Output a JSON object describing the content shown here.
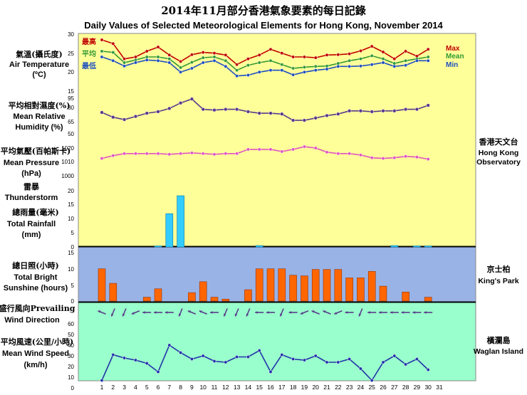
{
  "title_cn": "2014年11月部分香港氣象要素的每日記錄",
  "title_en": "Daily Values of Selected Meteorological Elements for Hong Kong, November 2014",
  "colors": {
    "hko_bg": "#ffff99",
    "kp_bg": "#99b3e6",
    "wi_bg": "#99ffcc",
    "max": "#c00000",
    "mean": "#339933",
    "min": "#1f4fbf",
    "rh": "#5a3a8a",
    "pressure": "#e055c0",
    "rain": "#33ccff",
    "sunshine": "#ff6600",
    "wind_dir": "#5a3a8a",
    "wind_speed": "#2233aa"
  },
  "panels": {
    "temperature": {
      "label_cn": "氣溫(攝氏度)",
      "label_en1": "Air Temperature",
      "label_en2": "(ºC)",
      "ticks": [
        "30",
        "25",
        "20",
        "15"
      ]
    },
    "humidity": {
      "label_cn": "平均相對濕度(%)",
      "label_en1": "Mean Relative",
      "label_en2": "Humidity  (%)",
      "ticks": [
        "95",
        "80",
        "65",
        "50"
      ]
    },
    "pressure": {
      "label_cn": "平均氣壓(百帕斯卡)",
      "label_en1": "Mean Pressure",
      "label_en2": "(hPa)",
      "ticks": [
        "1020",
        "1010",
        "1000"
      ]
    },
    "rainfall": {
      "label_cn1": "雷暴",
      "label_en1": "Thunderstorm",
      "label_cn2": "總雨量(毫米)",
      "label_en2": "Total Rainfall",
      "label_en3": "(mm)",
      "ticks": [
        "20",
        "15",
        "10",
        "5",
        "0"
      ]
    },
    "sunshine": {
      "label_cn": "總日照(小時)",
      "label_en1": "Total Bright",
      "label_en2": "Sunshine  (hours)",
      "ticks": [
        "15",
        "10",
        "5",
        "0"
      ]
    },
    "wind_dir": {
      "label_cn": "盛行風向Prevailing",
      "label_en1": "Wind Direction"
    },
    "wind_speed": {
      "label_cn": "平均風速(公里/小時)",
      "label_en1": "Mean Wind Speed",
      "label_en2": "(km/h)",
      "ticks": [
        "60",
        "50",
        "40",
        "30",
        "20",
        "10",
        "0"
      ]
    }
  },
  "legend": {
    "max_cn": "最高",
    "mean_cn": "平均",
    "min_cn": "最低",
    "max_en": "Max",
    "mean_en": "Mean",
    "min_en": "Min"
  },
  "stations": {
    "hko": {
      "cn": "香港天文台",
      "en1": "Hong Kong",
      "en2": "Observatory"
    },
    "kp": {
      "cn": "京士柏",
      "en1": "King's Park"
    },
    "wi": {
      "cn": "橫瀾島",
      "en1": "Waglan Island"
    }
  },
  "x_ticks": [
    "1",
    "2",
    "3",
    "4",
    "5",
    "6",
    "7",
    "8",
    "9",
    "10",
    "11",
    "12",
    "13",
    "14",
    "15",
    "16",
    "17",
    "18",
    "19",
    "20",
    "21",
    "22",
    "23",
    "24",
    "25",
    "26",
    "27",
    "28",
    "29",
    "30",
    "31"
  ],
  "chart_data": [
    {
      "type": "line",
      "title": "Air Temperature (ºC)",
      "x": [
        1,
        2,
        3,
        4,
        5,
        6,
        7,
        8,
        9,
        10,
        11,
        12,
        13,
        14,
        15,
        16,
        17,
        18,
        19,
        20,
        21,
        22,
        23,
        24,
        25,
        26,
        27,
        28,
        29,
        30
      ],
      "ylim": [
        15,
        30
      ],
      "series": [
        {
          "name": "Max",
          "values": [
            28.5,
            27.5,
            23.5,
            24.0,
            25.5,
            26.6,
            24.5,
            22.8,
            24.6,
            25.2,
            25.0,
            24.5,
            22.0,
            23.5,
            24.5,
            26.0,
            25.0,
            24.0,
            24.0,
            23.8,
            24.5,
            24.6,
            24.8,
            25.6,
            26.8,
            25.3,
            23.5,
            25.5,
            24.2,
            26.0
          ]
        },
        {
          "name": "Mean",
          "values": [
            25.5,
            25.2,
            22.5,
            23.2,
            24.0,
            24.0,
            23.5,
            21.2,
            22.6,
            23.8,
            24.0,
            23.0,
            20.5,
            21.8,
            22.5,
            23.0,
            22.0,
            21.0,
            21.3,
            21.5,
            21.6,
            22.3,
            23.0,
            23.5,
            24.3,
            23.5,
            22.3,
            23.0,
            23.5,
            24.0
          ]
        },
        {
          "name": "Min",
          "values": [
            24.0,
            23.0,
            21.6,
            22.5,
            23.2,
            23.0,
            22.5,
            20.0,
            21.0,
            22.5,
            23.0,
            21.5,
            19.0,
            19.2,
            20.0,
            20.5,
            20.5,
            19.3,
            20.0,
            20.5,
            20.8,
            21.5,
            21.5,
            21.6,
            22.0,
            22.5,
            21.5,
            21.8,
            23.0,
            23.0
          ]
        }
      ]
    },
    {
      "type": "line",
      "title": "Mean Relative Humidity (%)",
      "x": [
        1,
        2,
        3,
        4,
        5,
        6,
        7,
        8,
        9,
        10,
        11,
        12,
        13,
        14,
        15,
        16,
        17,
        18,
        19,
        20,
        21,
        22,
        23,
        24,
        25,
        26,
        27,
        28,
        29,
        30
      ],
      "ylim": [
        50,
        95
      ],
      "series": [
        {
          "name": "Mean Relative Humidity",
          "values": [
            77,
            71,
            68,
            72,
            76,
            78,
            82,
            89,
            94,
            81,
            80,
            81,
            81,
            78,
            76,
            76,
            75,
            67,
            67,
            70,
            73,
            75,
            79,
            79,
            78,
            79,
            79,
            81,
            81,
            86
          ]
        }
      ]
    },
    {
      "type": "line",
      "title": "Mean Pressure (hPa)",
      "x": [
        1,
        2,
        3,
        4,
        5,
        6,
        7,
        8,
        9,
        10,
        11,
        12,
        13,
        14,
        15,
        16,
        17,
        18,
        19,
        20,
        21,
        22,
        23,
        24,
        25,
        26,
        27,
        28,
        29,
        30
      ],
      "ylim": [
        1000,
        1025
      ],
      "series": [
        {
          "name": "Mean Pressure",
          "values": [
            1012.5,
            1014.5,
            1016,
            1016,
            1016,
            1016,
            1015.5,
            1016,
            1016.5,
            1016,
            1015.5,
            1016,
            1016,
            1019,
            1019,
            1019,
            1017.5,
            1019,
            1021,
            1020,
            1017,
            1016,
            1016,
            1015,
            1013,
            1012.5,
            1013,
            1014,
            1013.5,
            1012
          ]
        }
      ]
    },
    {
      "type": "bar",
      "title": "Total Rainfall (mm)",
      "x": [
        1,
        2,
        3,
        4,
        5,
        6,
        7,
        8,
        9,
        10,
        11,
        12,
        13,
        14,
        15,
        16,
        17,
        18,
        19,
        20,
        21,
        22,
        23,
        24,
        25,
        26,
        27,
        28,
        29,
        30
      ],
      "ylim": [
        0,
        20
      ],
      "values": [
        0,
        0,
        0,
        0,
        0,
        0.3,
        11.7,
        18.0,
        0,
        0,
        0,
        0,
        0,
        0,
        0.5,
        0,
        0,
        0,
        0,
        0,
        0,
        0,
        0,
        0,
        0,
        0,
        0.5,
        0,
        0.2,
        0.3
      ]
    },
    {
      "type": "bar",
      "title": "Total Bright Sunshine (hours)",
      "x": [
        1,
        2,
        3,
        4,
        5,
        6,
        7,
        8,
        9,
        10,
        11,
        12,
        13,
        14,
        15,
        16,
        17,
        18,
        19,
        20,
        21,
        22,
        23,
        24,
        25,
        26,
        27,
        28,
        29,
        30
      ],
      "ylim": [
        0,
        15
      ],
      "values": [
        10.0,
        5.5,
        0,
        0,
        1.2,
        3.8,
        0,
        0,
        2.6,
        6.0,
        1.2,
        0.6,
        0,
        3.5,
        10.0,
        10.0,
        10.0,
        8.0,
        7.8,
        9.8,
        9.8,
        9.8,
        7.2,
        7.2,
        9.2,
        4.6,
        0,
        2.8,
        0,
        1.2
      ]
    },
    {
      "type": "table",
      "title": "Prevailing Wind Direction",
      "x": [
        1,
        2,
        3,
        4,
        5,
        6,
        7,
        8,
        9,
        10,
        11,
        12,
        13,
        14,
        15,
        16,
        17,
        18,
        19,
        20,
        21,
        22,
        23,
        24,
        25,
        26,
        27,
        28,
        29,
        30
      ],
      "directions": [
        "ESE",
        "NNE",
        "NNE",
        "ENE",
        "E",
        "E",
        "E",
        "NNE",
        "ESE",
        "ESE",
        "E",
        "NNE",
        "NNE",
        "NNE",
        "E",
        "E",
        "NNE",
        "E",
        "ENE",
        "ESE",
        "ESE",
        "ENE",
        "E",
        "NNE",
        "E",
        "E",
        "E",
        "E",
        "E",
        "E"
      ]
    },
    {
      "type": "line",
      "title": "Mean Wind Speed (km/h)",
      "x": [
        1,
        2,
        3,
        4,
        5,
        6,
        7,
        8,
        9,
        10,
        11,
        12,
        13,
        14,
        15,
        16,
        17,
        18,
        19,
        20,
        21,
        22,
        23,
        24,
        25,
        26,
        27,
        28,
        29,
        30
      ],
      "ylim": [
        0,
        60
      ],
      "series": [
        {
          "name": "Mean Wind Speed",
          "values": [
            7,
            31,
            28,
            26,
            23,
            15,
            40,
            33,
            27,
            30,
            25,
            24,
            29,
            29,
            35,
            15,
            31,
            27,
            26,
            30,
            24,
            24,
            27,
            18,
            7,
            24,
            30,
            22,
            27,
            17
          ]
        }
      ]
    }
  ]
}
